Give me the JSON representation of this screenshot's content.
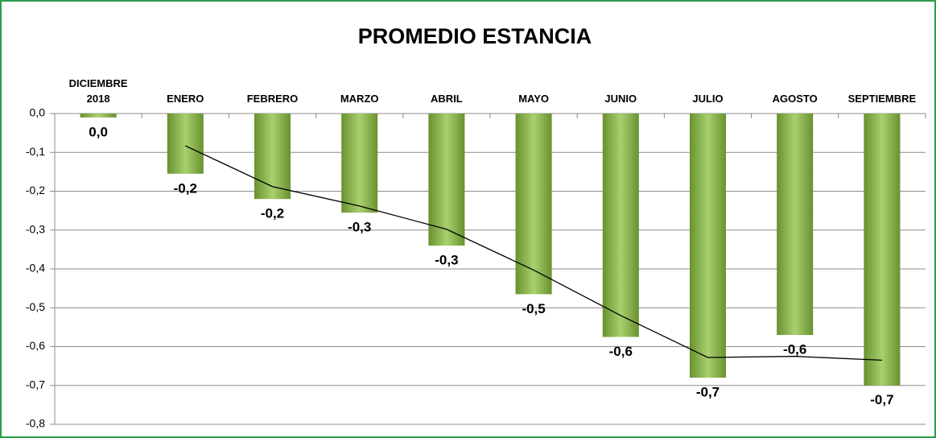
{
  "chart_data": {
    "type": "bar",
    "title": "PROMEDIO ESTANCIA",
    "categories": [
      "DICIEMBRE 2018",
      "ENERO",
      "FEBRERO",
      "MARZO",
      "ABRIL",
      "MAYO",
      "JUNIO",
      "JULIO",
      "AGOSTO",
      "SEPTIEMBRE"
    ],
    "series": [
      {
        "color": "#8cc13f",
        "type": "bar",
        "values": [
          -0.01,
          -0.155,
          -0.22,
          -0.255,
          -0.34,
          -0.465,
          -0.575,
          -0.68,
          -0.57,
          -0.7
        ],
        "value_labels": [
          "0,0",
          "-0,2",
          "-0,2",
          "-0,3",
          "-0,3",
          "-0,5",
          "-0,6",
          "-0,7",
          "-0,6",
          "-0,7"
        ]
      },
      {
        "color": "#000000",
        "type": "line",
        "values": [
          null,
          -0.083,
          -0.188,
          -0.238,
          -0.298,
          -0.403,
          -0.52,
          -0.628,
          -0.625,
          -0.635
        ]
      }
    ],
    "ylim": [
      -0.8,
      0
    ],
    "yticks": [
      {
        "value": 0,
        "label": "0,0"
      },
      {
        "value": -0.1,
        "label": "-0,1"
      },
      {
        "value": -0.2,
        "label": "-0,2"
      },
      {
        "value": -0.3,
        "label": "-0,3"
      },
      {
        "value": -0.4,
        "label": "-0,4"
      },
      {
        "value": -0.5,
        "label": "-0,5"
      },
      {
        "value": -0.6,
        "label": "-0,6"
      },
      {
        "value": -0.7,
        "label": "-0,7"
      },
      {
        "value": -0.8,
        "label": "-0,8"
      }
    ],
    "grid": true
  }
}
